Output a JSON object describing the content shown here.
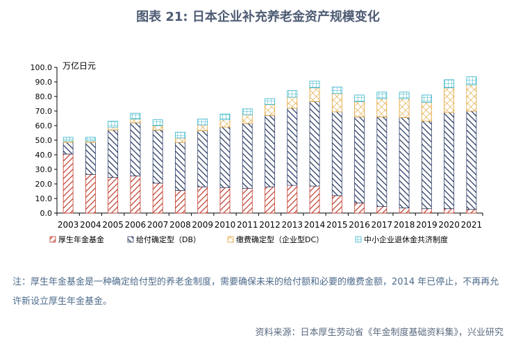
{
  "page": {
    "title": "图表 21: 日本企业补充养老金资产规模变化",
    "note": "注：厚生年金基金是一种确定给付型的养老金制度，需要确保未来的给付额和必要的缴费金额，2014 年已停止，不再再允许新设立厚生年金基金。",
    "source": "资料来源：日本厚生劳动省《年金制度基础资料集》，兴业研究"
  },
  "chart_data": {
    "type": "bar",
    "stacked": true,
    "ylabel": "万亿日元",
    "ylim": [
      0,
      100
    ],
    "ytick_step": 10,
    "grid": false,
    "legend_position": "bottom",
    "categories": [
      "2003",
      "2004",
      "2005",
      "2006",
      "2007",
      "2008",
      "2009",
      "2010",
      "2011",
      "2012",
      "2013",
      "2014",
      "2015",
      "2016",
      "2017",
      "2018",
      "2019",
      "2020",
      "2021"
    ],
    "series": [
      {
        "name": "厚生年金基金",
        "color": "#c0392b",
        "pattern": "hatch-red",
        "values": [
          40.5,
          26.5,
          24.5,
          25.5,
          20.5,
          15.5,
          18,
          17.5,
          17,
          18,
          19,
          18.5,
          12,
          7,
          4.5,
          3.5,
          3,
          3,
          2.5
        ]
      },
      {
        "name": "给付确定型（DB）",
        "color": "#2c3e66",
        "pattern": "hatch-navy",
        "values": [
          8,
          22,
          32.5,
          36.5,
          36.5,
          33,
          38.5,
          41.5,
          44.5,
          49,
          53,
          58,
          57.5,
          59,
          61.5,
          62,
          60,
          66,
          67.5
        ]
      },
      {
        "name": "缴费确定型（企业型DC）",
        "color": "#e0a030",
        "pattern": "cross-orange",
        "values": [
          1,
          1,
          2,
          2.5,
          3,
          3,
          4,
          5,
          6,
          7.5,
          7.5,
          9.5,
          12.5,
          10.5,
          12.5,
          13,
          13,
          17,
          18
        ]
      },
      {
        "name": "中小企业退休金共济制度",
        "color": "#33b3c8",
        "pattern": "grid-cyan",
        "values": [
          2.5,
          2.5,
          4,
          4,
          4,
          4,
          4,
          4,
          4,
          4,
          4.5,
          4.5,
          4.5,
          4.5,
          4.5,
          4.5,
          5,
          5.5,
          5.5
        ]
      }
    ]
  }
}
